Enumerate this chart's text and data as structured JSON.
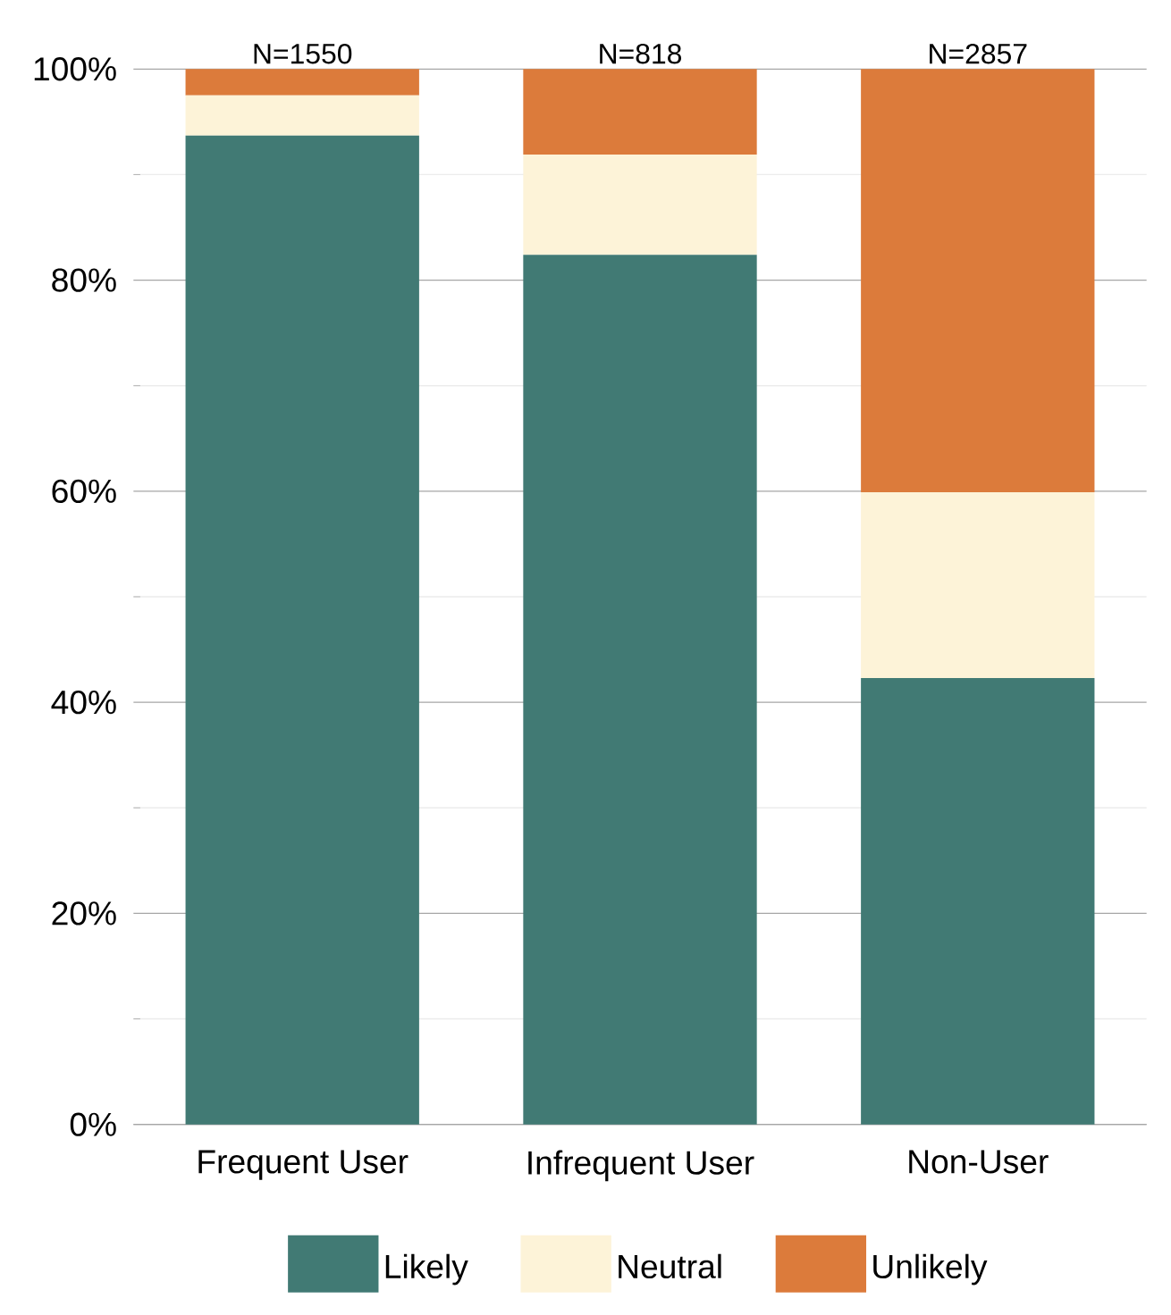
{
  "chart_data": {
    "type": "bar",
    "stacked": true,
    "categories": [
      "Frequent User",
      "Infrequent User",
      "Non-User"
    ],
    "series": [
      {
        "name": "Likely",
        "color": "#417a74",
        "values": [
          93.7,
          82.4,
          42.3
        ]
      },
      {
        "name": "Neutral",
        "color": "#fdf3d8",
        "values": [
          3.8,
          9.5,
          17.6
        ]
      },
      {
        "name": "Unlikely",
        "color": "#dc7b3b",
        "values": [
          2.5,
          8.1,
          40.1
        ]
      }
    ],
    "annotations": [
      "N=1550",
      "N=818",
      "N=2857"
    ],
    "ylim": [
      0,
      100
    ],
    "yticks": [
      {
        "value": 0,
        "label": "0%"
      },
      {
        "value": 20,
        "label": "20%"
      },
      {
        "value": 40,
        "label": "40%"
      },
      {
        "value": 60,
        "label": "60%"
      },
      {
        "value": 80,
        "label": "80%"
      },
      {
        "value": 100,
        "label": "100%"
      }
    ],
    "grid": "y",
    "legend": "bottom"
  }
}
